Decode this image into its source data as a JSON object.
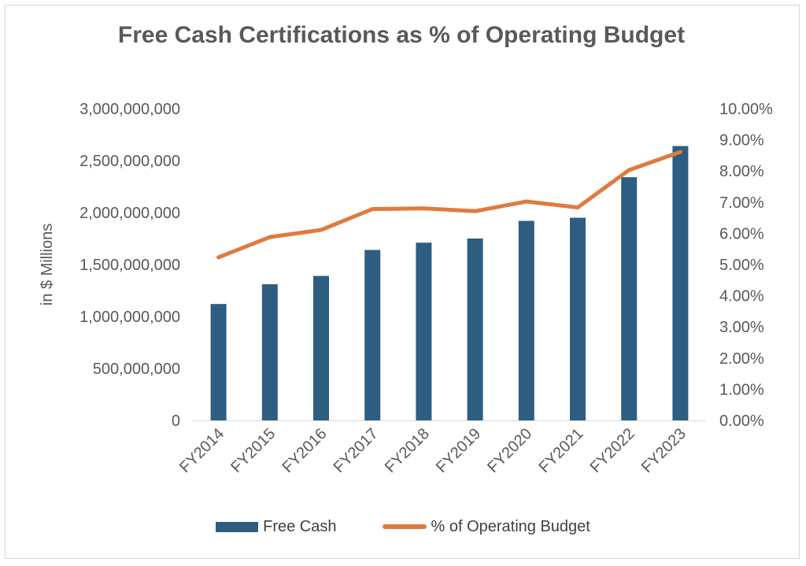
{
  "chart_data": {
    "type": "bar",
    "title": "Free Cash Certifications as % of Operating Budget",
    "ylabel": "in $ Millions",
    "y2label": "",
    "categories": [
      "FY2014",
      "FY2015",
      "FY2016",
      "FY2017",
      "FY2018",
      "FY2019",
      "FY2020",
      "FY2021",
      "FY2022",
      "FY2023"
    ],
    "series": [
      {
        "name": "Free Cash",
        "type": "bar",
        "axis": "left",
        "color": "#2e5d82",
        "values": [
          1120000000,
          1310000000,
          1390000000,
          1640000000,
          1710000000,
          1750000000,
          1920000000,
          1950000000,
          2340000000,
          2640000000
        ]
      },
      {
        "name": "% of Operating Budget",
        "type": "line",
        "axis": "right",
        "color": "#e07a3f",
        "values": [
          5.23,
          5.88,
          6.11,
          6.78,
          6.8,
          6.71,
          7.02,
          6.83,
          8.03,
          8.61
        ]
      }
    ],
    "ylim": [
      0,
      3000000000
    ],
    "y2lim": [
      0,
      10
    ],
    "yticks": [
      "0",
      "500,000,000",
      "1,000,000,000",
      "1,500,000,000",
      "2,000,000,000",
      "2,500,000,000",
      "3,000,000,000"
    ],
    "y2ticks": [
      "0.00%",
      "1.00%",
      "2.00%",
      "3.00%",
      "4.00%",
      "5.00%",
      "6.00%",
      "7.00%",
      "8.00%",
      "9.00%",
      "10.00%"
    ],
    "grid": false,
    "legend": "bottom"
  }
}
